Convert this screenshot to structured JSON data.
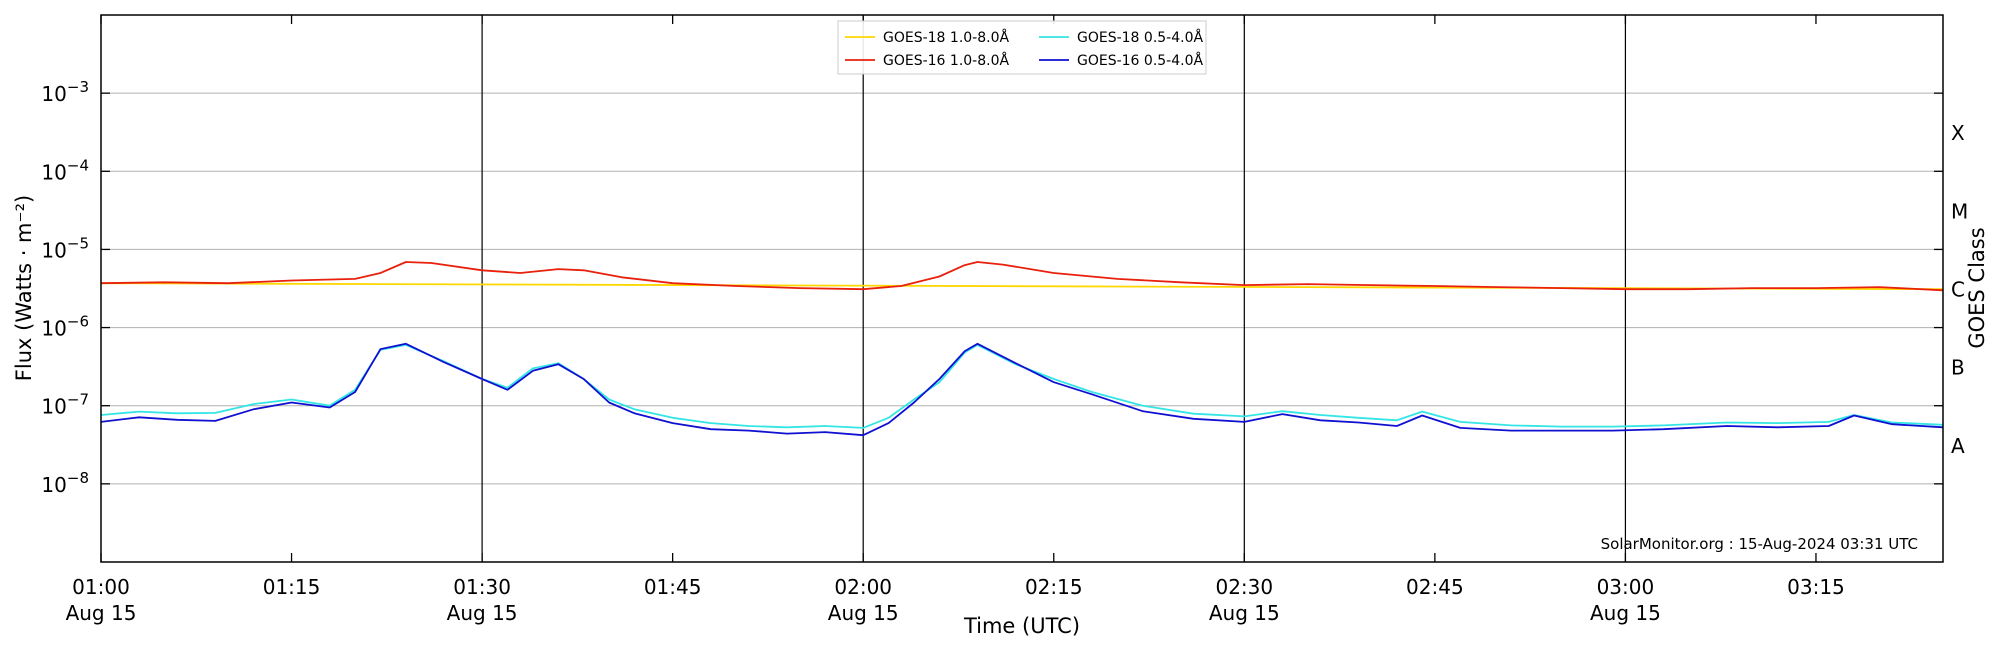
{
  "chart_data": {
    "type": "line",
    "title": "",
    "xlabel": "Time (UTC)",
    "ylabel": "Flux (Watts · m⁻²)",
    "y2label": "GOES Class",
    "yscale": "log",
    "ylim": [
      1e-09,
      0.01
    ],
    "xlim": [
      "01:00",
      "03:25"
    ],
    "x_ticks": [
      {
        "time": "01:00",
        "line1": "01:00",
        "line2": "Aug 15"
      },
      {
        "time": "01:15",
        "line1": "01:15",
        "line2": ""
      },
      {
        "time": "01:30",
        "line1": "01:30",
        "line2": "Aug 15"
      },
      {
        "time": "01:45",
        "line1": "01:45",
        "line2": ""
      },
      {
        "time": "02:00",
        "line1": "02:00",
        "line2": "Aug 15"
      },
      {
        "time": "02:15",
        "line1": "02:15",
        "line2": ""
      },
      {
        "time": "02:30",
        "line1": "02:30",
        "line2": "Aug 15"
      },
      {
        "time": "02:45",
        "line1": "02:45",
        "line2": ""
      },
      {
        "time": "03:00",
        "line1": "03:00",
        "line2": "Aug 15"
      },
      {
        "time": "03:15",
        "line1": "03:15",
        "line2": ""
      }
    ],
    "y_ticks": [
      {
        "value": 1e-08,
        "mantissa": "10",
        "exp": "−8"
      },
      {
        "value": 1e-07,
        "mantissa": "10",
        "exp": "−7"
      },
      {
        "value": 1e-06,
        "mantissa": "10",
        "exp": "−6"
      },
      {
        "value": 1e-05,
        "mantissa": "10",
        "exp": "−5"
      },
      {
        "value": 0.0001,
        "mantissa": "10",
        "exp": "−4"
      },
      {
        "value": 0.001,
        "mantissa": "10",
        "exp": "−3"
      }
    ],
    "grid": "horizontal",
    "vertical_lines": [
      "01:30",
      "02:00",
      "02:30",
      "03:00"
    ],
    "goes_classes": [
      {
        "label": "A",
        "value": 3.16e-08
      },
      {
        "label": "B",
        "value": 3.16e-07
      },
      {
        "label": "C",
        "value": 3.16e-06
      },
      {
        "label": "M",
        "value": 3.16e-05
      },
      {
        "label": "X",
        "value": 0.000316
      }
    ],
    "legend_position": "top-center",
    "credit": "SolarMonitor.org : 15-Aug-2024 03:31 UTC",
    "series": [
      {
        "name": "GOES-18 1.0-8.0Å",
        "color": "#ffd700",
        "x": [
          "01:00",
          "03:25"
        ],
        "y": [
          3.7e-06,
          3.1e-06
        ]
      },
      {
        "name": "GOES-16 1.0-8.0Å",
        "color": "#e8200c",
        "x": [
          "01:00",
          "01:05",
          "01:10",
          "01:15",
          "01:20",
          "01:22",
          "01:24",
          "01:26",
          "01:30",
          "01:33",
          "01:36",
          "01:38",
          "01:41",
          "01:45",
          "01:50",
          "01:55",
          "02:00",
          "02:03",
          "02:06",
          "02:08",
          "02:09",
          "02:11",
          "02:15",
          "02:20",
          "02:25",
          "02:30",
          "02:35",
          "02:40",
          "02:45",
          "02:50",
          "02:55",
          "03:00",
          "03:05",
          "03:10",
          "03:15",
          "03:20",
          "03:25"
        ],
        "y": [
          3.7e-06,
          3.8e-06,
          3.7e-06,
          4e-06,
          4.2e-06,
          5e-06,
          6.9e-06,
          6.7e-06,
          5.4e-06,
          5e-06,
          5.6e-06,
          5.4e-06,
          4.4e-06,
          3.7e-06,
          3.4e-06,
          3.2e-06,
          3.1e-06,
          3.4e-06,
          4.5e-06,
          6.3e-06,
          6.9e-06,
          6.4e-06,
          5e-06,
          4.2e-06,
          3.8e-06,
          3.5e-06,
          3.6e-06,
          3.5e-06,
          3.4e-06,
          3.3e-06,
          3.2e-06,
          3.1e-06,
          3.1e-06,
          3.2e-06,
          3.2e-06,
          3.3e-06,
          3e-06
        ]
      },
      {
        "name": "GOES-18 0.5-4.0Å",
        "color": "#33e5e5",
        "x": [
          "01:00",
          "01:03",
          "01:06",
          "01:09",
          "01:12",
          "01:15",
          "01:18",
          "01:20",
          "01:22",
          "01:24",
          "01:27",
          "01:30",
          "01:32",
          "01:34",
          "01:36",
          "01:38",
          "01:40",
          "01:42",
          "01:45",
          "01:48",
          "01:51",
          "01:54",
          "01:57",
          "02:00",
          "02:02",
          "02:04",
          "02:06",
          "02:08",
          "02:09",
          "02:12",
          "02:15",
          "02:18",
          "02:22",
          "02:26",
          "02:30",
          "02:33",
          "02:36",
          "02:39",
          "02:42",
          "02:44",
          "02:47",
          "02:51",
          "02:55",
          "02:59",
          "03:03",
          "03:08",
          "03:12",
          "03:16",
          "03:18",
          "03:21",
          "03:25"
        ],
        "y": [
          7.6e-08,
          8.4e-08,
          8e-08,
          8.1e-08,
          1.05e-07,
          1.2e-07,
          1e-07,
          1.6e-07,
          5.2e-07,
          6e-07,
          3.7e-07,
          2.2e-07,
          1.7e-07,
          3e-07,
          3.5e-07,
          2.2e-07,
          1.2e-07,
          9e-08,
          7e-08,
          6e-08,
          5.5e-08,
          5.3e-08,
          5.5e-08,
          5.2e-08,
          7e-08,
          1.2e-07,
          2e-07,
          4.8e-07,
          6e-07,
          3.4e-07,
          2.2e-07,
          1.5e-07,
          1e-07,
          7.9e-08,
          7.3e-08,
          8.5e-08,
          7.6e-08,
          7e-08,
          6.5e-08,
          8.4e-08,
          6.2e-08,
          5.6e-08,
          5.4e-08,
          5.4e-08,
          5.6e-08,
          6.1e-08,
          6e-08,
          6.2e-08,
          7.6e-08,
          6.1e-08,
          5.7e-08
        ]
      },
      {
        "name": "GOES-16 0.5-4.0Å",
        "color": "#1010d0",
        "x": [
          "01:00",
          "01:03",
          "01:06",
          "01:09",
          "01:12",
          "01:15",
          "01:18",
          "01:20",
          "01:22",
          "01:24",
          "01:27",
          "01:30",
          "01:32",
          "01:34",
          "01:36",
          "01:38",
          "01:40",
          "01:42",
          "01:45",
          "01:48",
          "01:51",
          "01:54",
          "01:57",
          "02:00",
          "02:02",
          "02:04",
          "02:06",
          "02:08",
          "02:09",
          "02:12",
          "02:15",
          "02:18",
          "02:22",
          "02:26",
          "02:30",
          "02:33",
          "02:36",
          "02:39",
          "02:42",
          "02:44",
          "02:47",
          "02:51",
          "02:55",
          "02:59",
          "03:03",
          "03:08",
          "03:12",
          "03:16",
          "03:18",
          "03:21",
          "03:25"
        ],
        "y": [
          6.2e-08,
          7.1e-08,
          6.6e-08,
          6.4e-08,
          9e-08,
          1.1e-07,
          9.5e-08,
          1.5e-07,
          5.3e-07,
          6.2e-07,
          3.6e-07,
          2.2e-07,
          1.6e-07,
          2.8e-07,
          3.4e-07,
          2.2e-07,
          1.1e-07,
          8e-08,
          6e-08,
          5e-08,
          4.8e-08,
          4.4e-08,
          4.6e-08,
          4.2e-08,
          6e-08,
          1.1e-07,
          2.2e-07,
          5e-07,
          6.2e-07,
          3.5e-07,
          2e-07,
          1.4e-07,
          8.5e-08,
          6.8e-08,
          6.2e-08,
          7.8e-08,
          6.5e-08,
          6.1e-08,
          5.5e-08,
          7.5e-08,
          5.2e-08,
          4.8e-08,
          4.8e-08,
          4.8e-08,
          5e-08,
          5.5e-08,
          5.3e-08,
          5.5e-08,
          7.5e-08,
          5.8e-08,
          5.3e-08
        ]
      }
    ]
  }
}
